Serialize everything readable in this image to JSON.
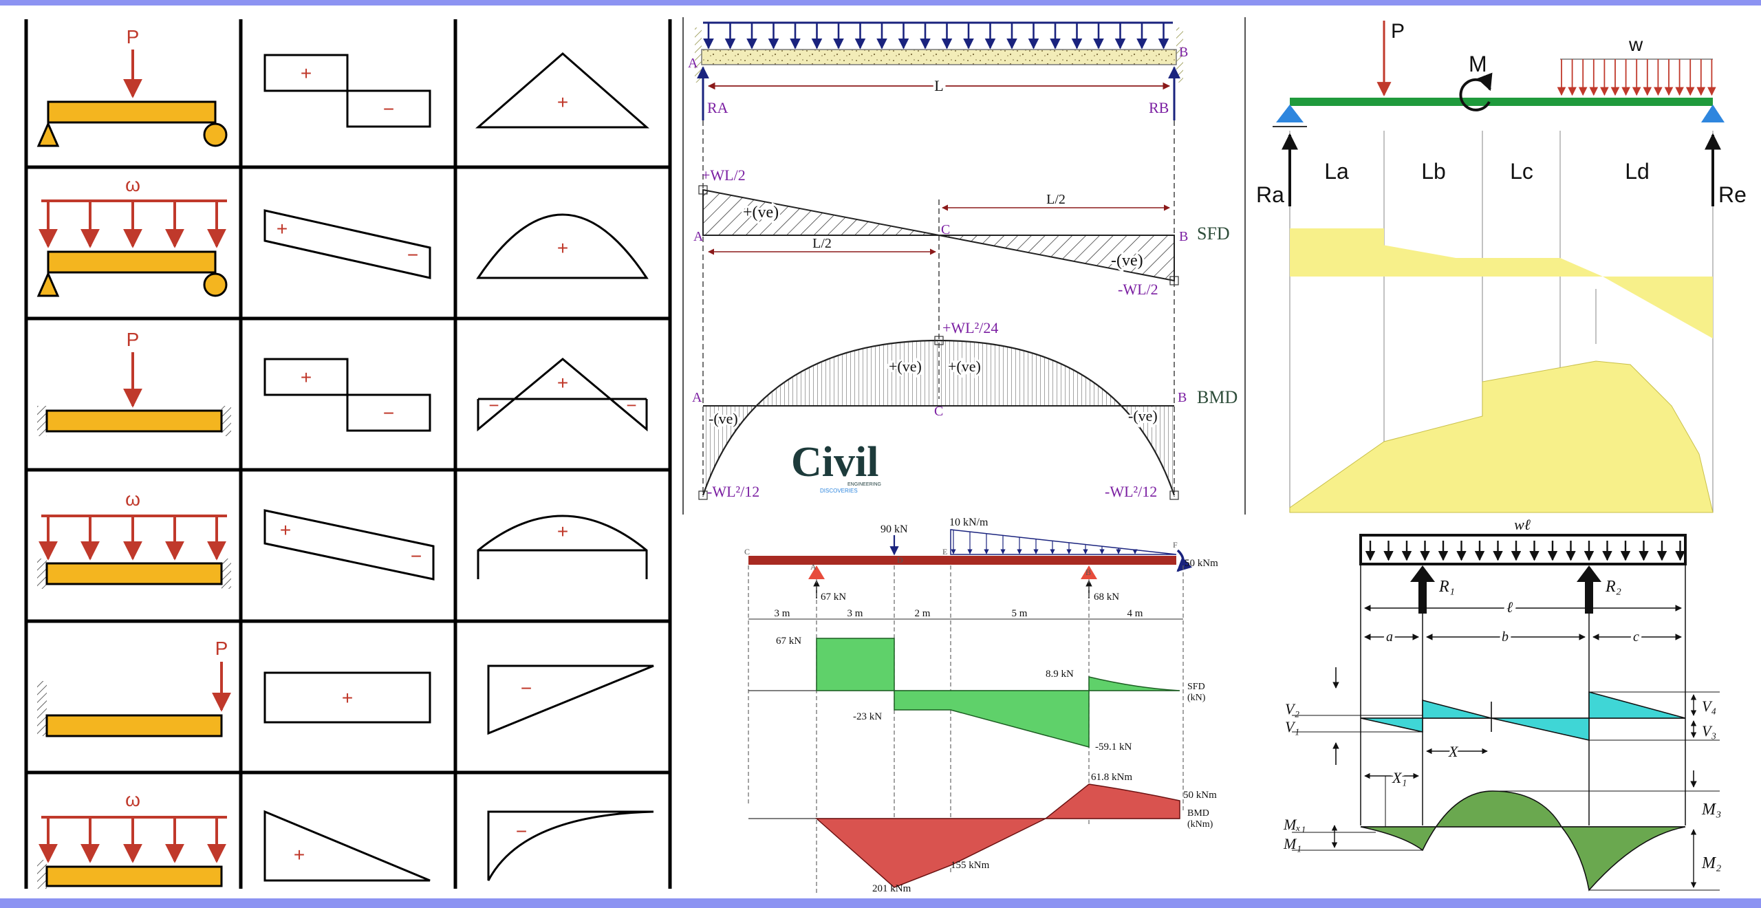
{
  "colors": {
    "frame": "#8c93f2",
    "load": "#c0392b",
    "beam_fill": "#f4b51f",
    "green_beam": "#1f9a3c",
    "support_blue": "#2e86de",
    "sfd_yellow": "#f7f08a",
    "sfd_green": "#5fd16a",
    "bmd_red": "#d9534f",
    "cyan": "#3fd6d6",
    "olive": "#6aa84f",
    "label_purple": "#7b1fa2",
    "dark_blue": "#1a237e"
  },
  "table": {
    "rows": [
      {
        "load": "P",
        "sign1": "+",
        "sign2": "−",
        "sign3": "+"
      },
      {
        "load": "ω",
        "sign1": "+",
        "sign2": "−",
        "sign3": "+"
      },
      {
        "load": "P",
        "sign1": "+",
        "sign2": "−",
        "sign3": "+",
        "sign4": "−",
        "sign5": "−"
      },
      {
        "load": "ω",
        "sign1": "+",
        "sign2": "−",
        "sign3": "+"
      },
      {
        "load": "P",
        "sign1": "+",
        "sign3": "−"
      },
      {
        "load": "ω",
        "sign1": "+",
        "sign3": "−"
      }
    ]
  },
  "fixed_beam": {
    "A": "A",
    "B": "B",
    "RA": "RA",
    "RB": "RB",
    "L": "L",
    "sfd_top": "+WL/2",
    "sfd_pos": "+(ve)",
    "sfd_neg": "-(ve)",
    "sfd_bot": "-WL/2",
    "half1": "L/2",
    "half2": "L/2",
    "C": "C",
    "SFD": "SFD",
    "bmd_top": "+WL²/24",
    "bmd_pos1": "+(ve)",
    "bmd_pos2": "+(ve)",
    "bmd_neg1": "-(ve)",
    "bmd_neg2": "-(ve)",
    "bmd_left": "-WL²/12",
    "bmd_right": "-WL²/12",
    "BMD": "BMD",
    "logo_main": "Civil",
    "logo_sub1": "ENGINEERING",
    "logo_sub2": "DISCOVERIES"
  },
  "green_beam": {
    "P": "P",
    "M": "M",
    "w": "w",
    "Ra": "Ra",
    "Re": "Re",
    "La": "La",
    "Lb": "Lb",
    "Lc": "Lc",
    "Ld": "Ld"
  },
  "overhang": {
    "load_90": "90 kN",
    "load_10": "10 kN/m",
    "moment": "50 kNm",
    "R1": "67 kN",
    "R2": "68 kN",
    "pt_C": "C",
    "pt_A": "A",
    "pt_D": "D",
    "pt_E": "E",
    "pt_B": "B",
    "pt_F": "F",
    "spans": [
      "3 m",
      "3 m",
      "2 m",
      "5 m",
      "4 m"
    ],
    "sfd_67": "67 kN",
    "sfd_89": "8.9 kN",
    "sfd_m23": "-23 kN",
    "sfd_m591": "-59.1 kN",
    "sfd_label": "SFD",
    "sfd_unit": "(kN)",
    "bmd_618": "61.8 kNm",
    "bmd_50": "50 kNm",
    "bmd_label": "BMD",
    "bmd_unit": "(kNm)",
    "bmd_155": "155 kNm",
    "bmd_201": "201 kNm"
  },
  "udl_overhang": {
    "wl": "wℓ",
    "R1": "R₁",
    "R2": "R₂",
    "l": "ℓ",
    "a": "a",
    "b": "b",
    "c": "c",
    "V1": "V₁",
    "V2": "V₂",
    "V3": "V₃",
    "V4": "V₄",
    "X": "X",
    "X1": "X₁",
    "M1": "M₁",
    "Mx1": "Mₓ₁",
    "M2": "M₂",
    "M3": "M₃"
  }
}
